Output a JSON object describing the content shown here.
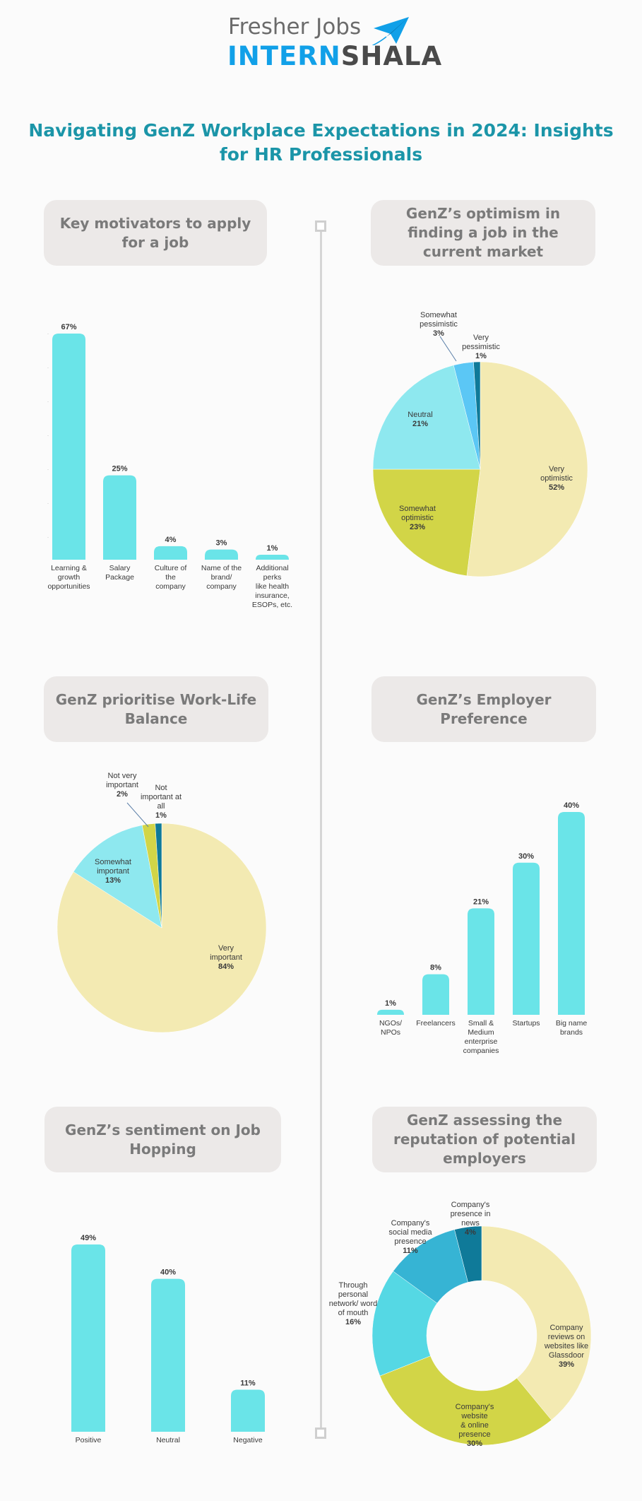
{
  "header": {
    "logo_line1": "Fresher Jobs",
    "logo_intern": "INTERN",
    "logo_shala": "SHALA",
    "title": "Navigating GenZ Workplace Expectations in 2024: Insights for HR Professionals"
  },
  "sections": [
    "Key motivators to apply for a job",
    "GenZ’s optimism in finding a job in the current market",
    "GenZ prioritise Work-Life Balance",
    "GenZ’s Employer Preference",
    "GenZ’s sentiment on Job Hopping",
    "GenZ assessing the reputation of potential employers"
  ],
  "colors": {
    "bar": "#6ae4e8",
    "light_yellow": "#f3eab2",
    "olive": "#d2d547",
    "light_teal": "#8ee8ef",
    "sky_blue": "#5bc7f5",
    "dark_teal": "#0f7a99",
    "donut_teal": "#55d8e4",
    "donut_blue": "#36b4d4",
    "title_teal": "#1b95a8",
    "logo_blue": "#11a0e8"
  },
  "chart_data": [
    {
      "type": "bar",
      "title": "Key motivators to apply for a job",
      "categories": [
        [
          "Learning &",
          "growth",
          "opportunities"
        ],
        [
          "Salary",
          "Package"
        ],
        [
          "Culture of",
          "the",
          "company"
        ],
        [
          "Name of the",
          "brand/",
          "company"
        ],
        [
          "Additional",
          "perks",
          "like health",
          "insurance,",
          "ESOPs, etc."
        ]
      ],
      "values": [
        67,
        25,
        4,
        3,
        1
      ],
      "labels": [
        "67%",
        "25%",
        "4%",
        "3%",
        "1%"
      ],
      "unit": "%"
    },
    {
      "type": "pie",
      "title": "GenZ’s optimism in finding a job in the current market",
      "slices": [
        {
          "lines": [
            "Very",
            "optimistic"
          ],
          "value": 52,
          "label": "52%",
          "color": "#f3eab2"
        },
        {
          "lines": [
            "Somewhat",
            "optimistic"
          ],
          "value": 23,
          "label": "23%",
          "color": "#d2d547"
        },
        {
          "lines": [
            "Neutral"
          ],
          "value": 21,
          "label": "21%",
          "color": "#8ee8ef"
        },
        {
          "lines": [
            "Somewhat",
            "pessimistic"
          ],
          "value": 3,
          "label": "3%",
          "color": "#5bc7f5"
        },
        {
          "lines": [
            "Very",
            "pessimistic"
          ],
          "value": 1,
          "label": "1%",
          "color": "#0f7a99"
        }
      ]
    },
    {
      "type": "pie",
      "title": "GenZ prioritise Work-Life Balance",
      "slices": [
        {
          "lines": [
            "Very",
            "important"
          ],
          "value": 84,
          "label": "84%",
          "color": "#f3eab2"
        },
        {
          "lines": [
            "Somewhat",
            "important"
          ],
          "value": 13,
          "label": "13%",
          "color": "#8ee8ef"
        },
        {
          "lines": [
            "Not very",
            "important"
          ],
          "value": 2,
          "label": "2%",
          "color": "#d2d547"
        },
        {
          "lines": [
            "Not",
            "important at",
            "all"
          ],
          "value": 1,
          "label": "1%",
          "color": "#0f7a99"
        }
      ]
    },
    {
      "type": "bar",
      "title": "GenZ’s Employer Preference",
      "categories": [
        [
          "NGOs/",
          "NPOs"
        ],
        [
          "Freelancers"
        ],
        [
          "Small &",
          "Medium",
          "enterprise",
          "companies"
        ],
        [
          "Startups"
        ],
        [
          "Big name",
          "brands"
        ]
      ],
      "values": [
        1,
        8,
        21,
        30,
        40
      ],
      "labels": [
        "1%",
        "8%",
        "21%",
        "30%",
        "40%"
      ],
      "unit": "%"
    },
    {
      "type": "bar",
      "title": "GenZ’s sentiment on Job Hopping",
      "categories": [
        [
          "Positive"
        ],
        [
          "Neutral"
        ],
        [
          "Negative"
        ]
      ],
      "values": [
        49,
        40,
        11
      ],
      "labels": [
        "49%",
        "40%",
        "11%"
      ],
      "unit": "%"
    },
    {
      "type": "pie",
      "title": "GenZ assessing the reputation of potential employers",
      "donut": true,
      "slices": [
        {
          "lines": [
            "Company",
            "reviews on",
            "websites like",
            "Glassdoor"
          ],
          "value": 39,
          "label": "39%",
          "color": "#f3eab2"
        },
        {
          "lines": [
            "Company's",
            "website",
            "& online",
            "presence"
          ],
          "value": 30,
          "label": "30%",
          "color": "#d2d547"
        },
        {
          "lines": [
            "Through",
            "personal",
            "network/ word",
            "of mouth"
          ],
          "value": 16,
          "label": "16%",
          "color": "#55d8e4"
        },
        {
          "lines": [
            "Company's",
            "social media",
            "presence"
          ],
          "value": 11,
          "label": "11%",
          "color": "#36b4d4"
        },
        {
          "lines": [
            "Company's",
            "presence in",
            "news"
          ],
          "value": 4,
          "label": "4%",
          "color": "#0f7a99"
        }
      ]
    }
  ]
}
